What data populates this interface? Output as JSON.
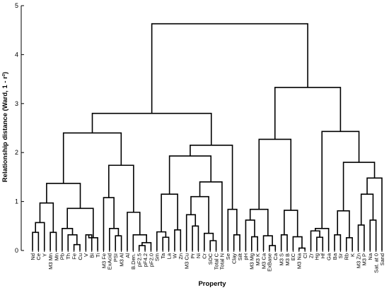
{
  "chart_data": {
    "type": "dendrogram",
    "xlabel": "Property",
    "ylabel": "Relationship distance (Ward, 1 - r²)",
    "ylim": [
      0,
      5
    ],
    "yticks": [
      "0",
      "1",
      "2",
      "3",
      "4",
      "5"
    ],
    "grid": false,
    "leaves": [
      "Nd",
      "Ce",
      "Y",
      "M3 Mn",
      "Mn",
      "Pb",
      "Th",
      "Fe",
      "Cu",
      "V",
      "Bi",
      "Ti",
      "M3 Fe",
      "ExAcid",
      "PSI",
      "M3 Al",
      "Al",
      "B.Den.",
      "pF2.5",
      "pF4.2",
      "pF2.0",
      "Sm",
      "Ta",
      "La",
      "W",
      "Zn",
      "M3 Cu",
      "Pr",
      "Ni",
      "Cr",
      "SOC",
      "Total C",
      "Total N",
      "Se",
      "Clay",
      "Silt",
      "pH",
      "M3 Mg",
      "M3 K",
      "M3 Ca",
      "ExBase",
      "Ca",
      "M3 S",
      "M3 B",
      "EC",
      "M3 Na",
      "Cl",
      "Zr",
      "Hg",
      "Hf",
      "Ga",
      "Ba",
      "Sr",
      "Rb",
      "K",
      "M3 Zn",
      "M3 P",
      "Na",
      "Sat. at 0",
      "Sand"
    ],
    "merges": [
      {
        "a": "L0",
        "b": "L1",
        "h": 0.37
      },
      {
        "a": "L3",
        "b": "L4",
        "h": 0.37
      },
      {
        "a": "M0",
        "b": "L2",
        "h": 0.57
      },
      {
        "a": "M2",
        "b": "M1",
        "h": 0.97
      },
      {
        "a": "L7",
        "b": "L8",
        "h": 0.12
      },
      {
        "a": "L6",
        "b": "M4",
        "h": 0.32
      },
      {
        "a": "L5",
        "b": "M5",
        "h": 0.45
      },
      {
        "a": "L9",
        "b": "L10",
        "h": 0.32
      },
      {
        "a": "M7",
        "b": "L11",
        "h": 0.26
      },
      {
        "a": "M6",
        "b": "M8",
        "h": 0.86
      },
      {
        "a": "M3",
        "b": "M9",
        "h": 1.37
      },
      {
        "a": "L14",
        "b": "L15",
        "h": 0.3
      },
      {
        "a": "M11",
        "b": "L13",
        "h": 0.45
      },
      {
        "a": "L12",
        "b": "M12",
        "h": 1.08
      },
      {
        "a": "L18",
        "b": "L19",
        "h": 0.1
      },
      {
        "a": "L20",
        "b": "M14",
        "h": 0.16
      },
      {
        "a": "L17",
        "b": "M15",
        "h": 0.32
      },
      {
        "a": "L16",
        "b": "M16",
        "h": 0.78
      },
      {
        "a": "M13",
        "b": "M17",
        "h": 1.74
      },
      {
        "a": "M10",
        "b": "M18",
        "h": 2.4
      },
      {
        "a": "L22",
        "b": "L23",
        "h": 0.27
      },
      {
        "a": "L21",
        "b": "M20",
        "h": 0.38
      },
      {
        "a": "L24",
        "b": "L25",
        "h": 0.42
      },
      {
        "a": "M21",
        "b": "M22",
        "h": 1.15
      },
      {
        "a": "L27",
        "b": "L28",
        "h": 0.5
      },
      {
        "a": "L26",
        "b": "M24",
        "h": 0.73
      },
      {
        "a": "L30",
        "b": "L31",
        "h": 0.2
      },
      {
        "a": "L29",
        "b": "M26",
        "h": 0.35
      },
      {
        "a": "M25",
        "b": "M27",
        "h": 1.1
      },
      {
        "a": "L32",
        "b": "M28",
        "h": 1.4
      },
      {
        "a": "M23",
        "b": "M29",
        "h": 1.93
      },
      {
        "a": "L34",
        "b": "L35",
        "h": 0.32
      },
      {
        "a": "L33",
        "b": "M31",
        "h": 0.84
      },
      {
        "a": "M30",
        "b": "M32",
        "h": 2.15
      },
      {
        "a": "M19",
        "b": "M33",
        "h": 2.8
      },
      {
        "a": "L37",
        "b": "L38",
        "h": 0.28
      },
      {
        "a": "L36",
        "b": "M35",
        "h": 0.62
      },
      {
        "a": "L40",
        "b": "L41",
        "h": 0.1
      },
      {
        "a": "L39",
        "b": "M37",
        "h": 0.3
      },
      {
        "a": "M36",
        "b": "M38",
        "h": 0.84
      },
      {
        "a": "L42",
        "b": "L43",
        "h": 0.32
      },
      {
        "a": "L45",
        "b": "L46",
        "h": 0.05
      },
      {
        "a": "L44",
        "b": "M41",
        "h": 0.28
      },
      {
        "a": "M40",
        "b": "M42",
        "h": 0.82
      },
      {
        "a": "M39",
        "b": "M43",
        "h": 2.27
      },
      {
        "a": "L48",
        "b": "L49",
        "h": 0.27
      },
      {
        "a": "L47",
        "b": "M45",
        "h": 0.4
      },
      {
        "a": "M46",
        "b": "L50",
        "h": 0.45
      },
      {
        "a": "L51",
        "b": "L52",
        "h": 0.32
      },
      {
        "a": "L53",
        "b": "L54",
        "h": 0.26
      },
      {
        "a": "M48",
        "b": "M49",
        "h": 0.81
      },
      {
        "a": "L55",
        "b": "L56",
        "h": 0.52
      },
      {
        "a": "L57",
        "b": "L58",
        "h": 0.62
      },
      {
        "a": "M51",
        "b": "M52",
        "h": 1.15
      },
      {
        "a": "M53",
        "b": "L59",
        "h": 1.48
      },
      {
        "a": "M50",
        "b": "M54",
        "h": 1.8
      },
      {
        "a": "M47",
        "b": "M55",
        "h": 2.43
      },
      {
        "a": "M44",
        "b": "M56",
        "h": 3.33
      },
      {
        "a": "M34",
        "b": "M57",
        "h": 4.63
      }
    ]
  }
}
